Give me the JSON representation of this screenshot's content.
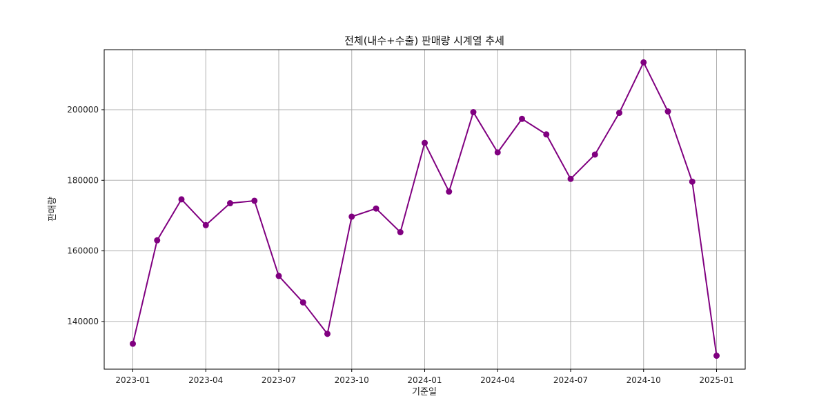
{
  "chart_data": {
    "type": "line",
    "title": "전체(내수+수출) 판매량 시계열 추세",
    "xlabel": "기준일",
    "ylabel": "판매량",
    "x": [
      "2023-01",
      "2023-02",
      "2023-03",
      "2023-04",
      "2023-05",
      "2023-06",
      "2023-07",
      "2023-08",
      "2023-09",
      "2023-10",
      "2023-11",
      "2023-12",
      "2024-01",
      "2024-02",
      "2024-03",
      "2024-04",
      "2024-05",
      "2024-06",
      "2024-07",
      "2024-08",
      "2024-09",
      "2024-10",
      "2024-11",
      "2024-12",
      "2025-01"
    ],
    "x_ticks": [
      "2023-01",
      "2023-04",
      "2023-07",
      "2023-10",
      "2024-01",
      "2024-04",
      "2024-07",
      "2024-10",
      "2025-01"
    ],
    "y_ticks": [
      140000,
      160000,
      180000,
      200000
    ],
    "ylim": [
      126500,
      217000
    ],
    "series": [
      {
        "values": [
          133700,
          163000,
          174600,
          167300,
          173500,
          174200,
          152900,
          145400,
          136500,
          169700,
          172000,
          165300,
          190600,
          176800,
          199300,
          187900,
          197400,
          193000,
          180400,
          187300,
          199100,
          213400,
          199500,
          179600,
          130300
        ],
        "color": "#800080"
      }
    ],
    "grid": true,
    "legend": "none"
  }
}
